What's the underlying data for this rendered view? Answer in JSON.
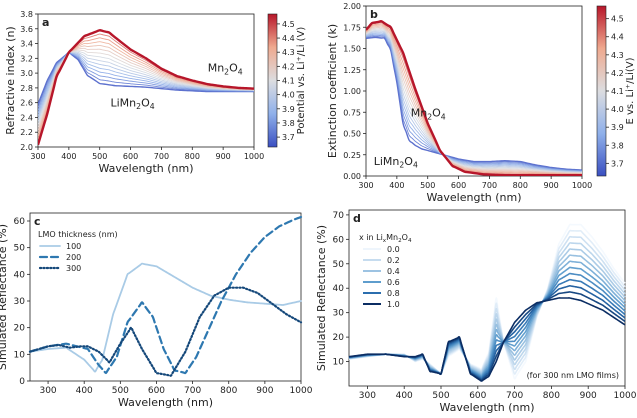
{
  "chart_data": [
    {
      "panel": "a",
      "type": "line",
      "xlabel": "Wavelength (nm)",
      "ylabel": "Refractive index (n)",
      "xlim": [
        300,
        1000
      ],
      "ylim": [
        2.0,
        3.8
      ],
      "xticks": [
        300,
        400,
        500,
        600,
        700,
        800,
        900,
        1000
      ],
      "yticks": [
        2.0,
        2.2,
        2.4,
        2.6,
        2.8,
        3.0,
        3.2,
        3.4,
        3.6,
        3.8
      ],
      "gradient": {
        "from": "LiMn2O4",
        "to": "Mn2O4",
        "steps": 14
      },
      "series": [
        {
          "name": "Mn2O4",
          "x": [
            300,
            330,
            360,
            400,
            450,
            500,
            530,
            560,
            600,
            650,
            700,
            750,
            800,
            850,
            900,
            950,
            1000
          ],
          "values": [
            2.03,
            2.45,
            2.95,
            3.28,
            3.5,
            3.58,
            3.55,
            3.45,
            3.32,
            3.2,
            3.06,
            2.96,
            2.9,
            2.85,
            2.82,
            2.8,
            2.79
          ]
        },
        {
          "name": "LiMn2O4",
          "x": [
            300,
            330,
            360,
            400,
            430,
            460,
            500,
            550,
            600,
            650,
            700,
            750,
            800,
            850,
            900,
            950,
            1000
          ],
          "values": [
            2.58,
            2.9,
            3.14,
            3.28,
            3.18,
            2.97,
            2.86,
            2.83,
            2.82,
            2.81,
            2.79,
            2.77,
            2.76,
            2.75,
            2.75,
            2.75,
            2.75
          ]
        }
      ],
      "labels": [
        {
          "text": "Mn",
          "sub": "2",
          "text2": "O",
          "sub2": "4",
          "x": 850,
          "y": 3.02,
          "series": "Mn2O4"
        },
        {
          "text": "LiMn",
          "sub": "2",
          "text2": "O",
          "sub2": "4",
          "x": 535,
          "y": 2.55,
          "series": "LiMn2O4"
        }
      ],
      "colorbar": {
        "label": "Potential vs. Li⁺/Li (V)",
        "range": [
          3.63,
          4.57
        ],
        "ticks": [
          3.7,
          3.8,
          3.9,
          4.0,
          4.1,
          4.2,
          4.3,
          4.4,
          4.5
        ]
      }
    },
    {
      "panel": "b",
      "type": "line",
      "xlabel": "Wavelength (nm)",
      "ylabel": "Extinction coefficient (k)",
      "xlim": [
        300,
        1000
      ],
      "ylim": [
        0.0,
        2.0
      ],
      "xticks": [
        300,
        400,
        500,
        600,
        700,
        800,
        900,
        1000
      ],
      "yticks": [
        0.0,
        0.25,
        0.5,
        0.75,
        1.0,
        1.25,
        1.5,
        1.75,
        2.0
      ],
      "gradient": {
        "from": "LiMn2O4",
        "to": "Mn2O4",
        "steps": 14
      },
      "series": [
        {
          "name": "Mn2O4",
          "x": [
            300,
            320,
            350,
            380,
            420,
            460,
            500,
            540,
            580,
            620,
            680,
            750,
            800,
            900,
            1000
          ],
          "values": [
            1.72,
            1.8,
            1.82,
            1.75,
            1.45,
            1.02,
            0.62,
            0.3,
            0.12,
            0.05,
            0.02,
            0.01,
            0.01,
            0.01,
            0.01
          ]
        },
        {
          "name": "LiMn2O4",
          "x": [
            300,
            330,
            360,
            380,
            400,
            420,
            440,
            460,
            480,
            520,
            560,
            600,
            650,
            700,
            750,
            800,
            850,
            900,
            950,
            1000
          ],
          "values": [
            1.62,
            1.63,
            1.62,
            1.48,
            1.1,
            0.62,
            0.42,
            0.36,
            0.32,
            0.28,
            0.24,
            0.2,
            0.17,
            0.17,
            0.18,
            0.17,
            0.13,
            0.1,
            0.08,
            0.07
          ]
        }
      ],
      "labels": [
        {
          "text": "Mn",
          "sub": "2",
          "text2": "O",
          "sub2": "4",
          "x": 445,
          "y": 0.7,
          "series": "Mn2O4"
        },
        {
          "text": "LiMn",
          "sub": "2",
          "text2": "O",
          "sub2": "4",
          "x": 325,
          "y": 0.13,
          "series": "LiMn2O4"
        }
      ],
      "colorbar": {
        "label": "E vs. Li⁺/Li(V)",
        "range": [
          3.63,
          4.57
        ],
        "ticks": [
          3.7,
          3.8,
          3.9,
          4.0,
          4.1,
          4.2,
          4.3,
          4.4,
          4.5
        ]
      }
    },
    {
      "panel": "c",
      "type": "line",
      "xlabel": "Wavelength (nm)",
      "ylabel": "Simulated Reflectance (%)",
      "xlim": [
        250,
        1000
      ],
      "ylim": [
        0,
        63
      ],
      "xticks": [
        300,
        400,
        500,
        600,
        700,
        800,
        900,
        1000
      ],
      "yticks": [
        0,
        10,
        20,
        30,
        40,
        50,
        60
      ],
      "legend_title": "LMO thickness (nm)",
      "legend_placement": "top-left",
      "series": [
        {
          "name": "100",
          "style": "solid",
          "color": "#a9cbe6",
          "x": [
            250,
            300,
            350,
            400,
            430,
            450,
            480,
            520,
            560,
            600,
            650,
            700,
            750,
            800,
            850,
            900,
            950,
            1000
          ],
          "values": [
            11,
            12,
            12.5,
            8,
            3.5,
            8,
            25,
            40,
            44,
            43,
            39,
            35,
            32,
            30.5,
            29.5,
            29,
            28.5,
            30
          ]
        },
        {
          "name": "200",
          "style": "dashed",
          "color": "#2e78b0",
          "x": [
            250,
            300,
            350,
            380,
            410,
            440,
            460,
            490,
            520,
            560,
            590,
            620,
            650,
            680,
            710,
            740,
            780,
            820,
            860,
            900,
            940,
            980,
            1000
          ],
          "values": [
            11,
            13,
            14,
            13,
            12,
            6,
            3,
            9,
            22,
            29.5,
            24,
            12,
            4,
            3,
            9,
            18,
            30,
            40,
            48,
            54,
            58,
            60.5,
            61.5
          ]
        },
        {
          "name": "300",
          "style": "dotted",
          "color": "#15487a",
          "x": [
            250,
            300,
            330,
            360,
            390,
            410,
            440,
            470,
            500,
            530,
            560,
            600,
            640,
            680,
            720,
            760,
            800,
            840,
            880,
            920,
            960,
            1000
          ],
          "values": [
            11,
            13,
            13.5,
            12.5,
            13,
            13,
            11,
            7,
            14,
            20,
            12,
            3,
            2,
            11,
            24,
            32,
            35,
            35,
            33,
            29,
            25,
            22
          ]
        }
      ]
    },
    {
      "panel": "d",
      "type": "line",
      "xlabel": "Wavelength (nm)",
      "ylabel": "Simulated Reflectance (%)",
      "xlim": [
        250,
        1000
      ],
      "ylim": [
        0,
        72
      ],
      "xticks": [
        300,
        400,
        500,
        600,
        700,
        800,
        900,
        1000
      ],
      "yticks": [
        10,
        20,
        30,
        40,
        50,
        60,
        70
      ],
      "legend_title": "x in Li",
      "legend_title_sub": "x",
      "legend_title_tail": "Mn",
      "legend_title_sub2": "2",
      "legend_title_tail2": "O",
      "legend_title_sub3": "4",
      "legend_placement": "top-left",
      "annotation": "(for 300 nm LMO films)",
      "series": [
        {
          "name": "0.0",
          "color": "#eef5fc"
        },
        {
          "name": "0.2",
          "color": "#c6dcef"
        },
        {
          "name": "0.4",
          "color": "#9dc3e2"
        },
        {
          "name": "0.6",
          "color": "#5e9dcd"
        },
        {
          "name": "0.8",
          "color": "#2b6eae"
        },
        {
          "name": "1.0",
          "color": "#0b2d63"
        }
      ],
      "curve_x": [
        250,
        300,
        350,
        400,
        430,
        450,
        470,
        500,
        520,
        550,
        580,
        610,
        630,
        650,
        670,
        700,
        730,
        760,
        790,
        820,
        850,
        880,
        910,
        940,
        970,
        1000
      ],
      "curve_min": [
        11,
        12,
        13,
        13,
        10,
        11,
        9,
        5,
        12,
        15,
        9,
        7,
        14,
        36,
        18,
        3,
        10,
        28,
        40,
        58,
        66,
        66,
        61,
        55,
        48,
        42
      ],
      "curve_max": [
        12,
        13,
        13,
        12,
        12,
        13,
        6,
        5,
        18,
        20,
        5,
        2,
        4,
        10,
        18,
        26,
        31,
        34,
        35,
        36,
        36,
        35,
        33,
        31,
        28,
        25
      ]
    }
  ]
}
